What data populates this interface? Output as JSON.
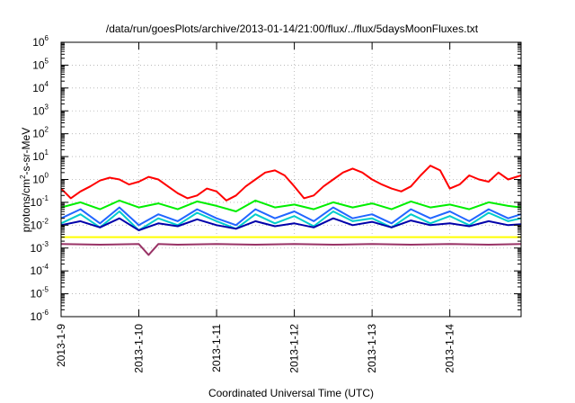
{
  "chart_data": {
    "type": "line",
    "title": "/data/run/goesPlots/archive/2013-01-14/21:00/flux/../flux/5daysMoonFluxes.txt",
    "xlabel": "Coordinated Universal Time (UTC)",
    "ylabel": {
      "pre": "protons/cm",
      "sup": "2",
      "post": "-s-sr-MeV"
    },
    "xlim": [
      "2013-01-09T00:00",
      "2013-01-14T22:00"
    ],
    "x_ticks": [
      {
        "date": "2013-01-09T00:00",
        "label": "2013-1-9"
      },
      {
        "date": "2013-01-10T00:00",
        "label": "2013-1-10"
      },
      {
        "date": "2013-01-11T00:00",
        "label": "2013-1-11"
      },
      {
        "date": "2013-01-12T00:00",
        "label": "2013-1-12"
      },
      {
        "date": "2013-01-13T00:00",
        "label": "2013-1-13"
      },
      {
        "date": "2013-01-14T00:00",
        "label": "2013-1-14"
      }
    ],
    "y_scale": "log",
    "ylim": [
      1e-06,
      1000000.0
    ],
    "y_ticks": [
      {
        "value": 1000000.0,
        "base": "10",
        "exp": "6"
      },
      {
        "value": 100000.0,
        "base": "10",
        "exp": "5"
      },
      {
        "value": 10000.0,
        "base": "10",
        "exp": "4"
      },
      {
        "value": 1000.0,
        "base": "10",
        "exp": "3"
      },
      {
        "value": 100.0,
        "base": "10",
        "exp": "2"
      },
      {
        "value": 10.0,
        "base": "10",
        "exp": "1"
      },
      {
        "value": 1.0,
        "base": "10",
        "exp": "0"
      },
      {
        "value": 0.1,
        "base": "10",
        "exp": "-1"
      },
      {
        "value": 0.01,
        "base": "10",
        "exp": "-2"
      },
      {
        "value": 0.001,
        "base": "10",
        "exp": "-3"
      },
      {
        "value": 0.0001,
        "base": "10",
        "exp": "-4"
      },
      {
        "value": 1e-05,
        "base": "10",
        "exp": "-5"
      },
      {
        "value": 1e-06,
        "base": "10",
        "exp": "-6"
      }
    ],
    "grid": true,
    "series": [
      {
        "color": "#ff0000",
        "x": [
          "2013-01-09T00:00",
          "2013-01-09T03:00",
          "2013-01-09T06:00",
          "2013-01-09T09:00",
          "2013-01-09T12:00",
          "2013-01-09T15:00",
          "2013-01-09T18:00",
          "2013-01-09T21:00",
          "2013-01-10T00:00",
          "2013-01-10T03:00",
          "2013-01-10T06:00",
          "2013-01-10T09:00",
          "2013-01-10T12:00",
          "2013-01-10T15:00",
          "2013-01-10T18:00",
          "2013-01-10T21:00",
          "2013-01-11T00:00",
          "2013-01-11T03:00",
          "2013-01-11T06:00",
          "2013-01-11T09:00",
          "2013-01-11T12:00",
          "2013-01-11T15:00",
          "2013-01-11T18:00",
          "2013-01-11T21:00",
          "2013-01-12T00:00",
          "2013-01-12T03:00",
          "2013-01-12T06:00",
          "2013-01-12T09:00",
          "2013-01-12T12:00",
          "2013-01-12T15:00",
          "2013-01-12T18:00",
          "2013-01-12T21:00",
          "2013-01-13T00:00",
          "2013-01-13T03:00",
          "2013-01-13T06:00",
          "2013-01-13T09:00",
          "2013-01-13T12:00",
          "2013-01-13T15:00",
          "2013-01-13T18:00",
          "2013-01-13T21:00",
          "2013-01-14T00:00",
          "2013-01-14T03:00",
          "2013-01-14T06:00",
          "2013-01-14T09:00",
          "2013-01-14T12:00",
          "2013-01-14T15:00",
          "2013-01-14T18:00",
          "2013-01-14T22:00"
        ],
        "values": [
          0.4,
          0.15,
          0.3,
          0.5,
          0.9,
          1.2,
          1.0,
          0.6,
          0.8,
          1.3,
          1.0,
          0.5,
          0.25,
          0.15,
          0.2,
          0.4,
          0.3,
          0.12,
          0.2,
          0.5,
          1.0,
          2.0,
          2.5,
          1.5,
          0.5,
          0.15,
          0.2,
          0.5,
          1.0,
          2.0,
          3.0,
          2.0,
          1.0,
          0.6,
          0.4,
          0.3,
          0.5,
          1.5,
          4.0,
          2.5,
          0.4,
          0.6,
          1.5,
          1.0,
          0.8,
          2.0,
          1.0,
          1.5
        ]
      },
      {
        "color": "#00ee00",
        "x": [
          "2013-01-09T00:00",
          "2013-01-09T06:00",
          "2013-01-09T12:00",
          "2013-01-09T18:00",
          "2013-01-10T00:00",
          "2013-01-10T06:00",
          "2013-01-10T12:00",
          "2013-01-10T18:00",
          "2013-01-11T00:00",
          "2013-01-11T06:00",
          "2013-01-11T12:00",
          "2013-01-11T18:00",
          "2013-01-12T00:00",
          "2013-01-12T06:00",
          "2013-01-12T12:00",
          "2013-01-12T18:00",
          "2013-01-13T00:00",
          "2013-01-13T06:00",
          "2013-01-13T12:00",
          "2013-01-13T18:00",
          "2013-01-14T00:00",
          "2013-01-14T06:00",
          "2013-01-14T12:00",
          "2013-01-14T18:00",
          "2013-01-14T22:00"
        ],
        "values": [
          0.06,
          0.1,
          0.05,
          0.12,
          0.06,
          0.09,
          0.05,
          0.11,
          0.07,
          0.04,
          0.12,
          0.06,
          0.08,
          0.05,
          0.1,
          0.06,
          0.09,
          0.05,
          0.11,
          0.06,
          0.08,
          0.05,
          0.1,
          0.07,
          0.06
        ]
      },
      {
        "color": "#00cccc",
        "x": [
          "2013-01-09T00:00",
          "2013-01-09T06:00",
          "2013-01-09T12:00",
          "2013-01-09T18:00",
          "2013-01-10T00:00",
          "2013-01-10T06:00",
          "2013-01-10T12:00",
          "2013-01-10T18:00",
          "2013-01-11T00:00",
          "2013-01-11T06:00",
          "2013-01-11T12:00",
          "2013-01-11T18:00",
          "2013-01-12T00:00",
          "2013-01-12T06:00",
          "2013-01-12T12:00",
          "2013-01-12T18:00",
          "2013-01-13T00:00",
          "2013-01-13T06:00",
          "2013-01-13T12:00",
          "2013-01-13T18:00",
          "2013-01-14T00:00",
          "2013-01-14T06:00",
          "2013-01-14T12:00",
          "2013-01-14T18:00",
          "2013-01-14T22:00"
        ],
        "values": [
          0.012,
          0.03,
          0.008,
          0.04,
          0.006,
          0.02,
          0.01,
          0.035,
          0.015,
          0.007,
          0.03,
          0.012,
          0.025,
          0.009,
          0.04,
          0.015,
          0.02,
          0.008,
          0.03,
          0.012,
          0.025,
          0.01,
          0.035,
          0.015,
          0.02
        ]
      },
      {
        "color": "#2266ff",
        "x": [
          "2013-01-09T00:00",
          "2013-01-09T06:00",
          "2013-01-09T12:00",
          "2013-01-09T18:00",
          "2013-01-10T00:00",
          "2013-01-10T06:00",
          "2013-01-10T12:00",
          "2013-01-10T18:00",
          "2013-01-11T00:00",
          "2013-01-11T06:00",
          "2013-01-11T12:00",
          "2013-01-11T18:00",
          "2013-01-12T00:00",
          "2013-01-12T06:00",
          "2013-01-12T12:00",
          "2013-01-12T18:00",
          "2013-01-13T00:00",
          "2013-01-13T06:00",
          "2013-01-13T12:00",
          "2013-01-13T18:00",
          "2013-01-14T00:00",
          "2013-01-14T06:00",
          "2013-01-14T12:00",
          "2013-01-14T18:00",
          "2013-01-14T22:00"
        ],
        "values": [
          0.02,
          0.05,
          0.012,
          0.06,
          0.01,
          0.03,
          0.015,
          0.05,
          0.02,
          0.01,
          0.05,
          0.02,
          0.04,
          0.015,
          0.06,
          0.02,
          0.03,
          0.012,
          0.05,
          0.02,
          0.04,
          0.015,
          0.05,
          0.02,
          0.03
        ]
      },
      {
        "color": "#0000aa",
        "x": [
          "2013-01-09T00:00",
          "2013-01-09T06:00",
          "2013-01-09T12:00",
          "2013-01-09T18:00",
          "2013-01-10T00:00",
          "2013-01-10T06:00",
          "2013-01-10T12:00",
          "2013-01-10T18:00",
          "2013-01-11T00:00",
          "2013-01-11T06:00",
          "2013-01-11T12:00",
          "2013-01-11T18:00",
          "2013-01-12T00:00",
          "2013-01-12T06:00",
          "2013-01-12T12:00",
          "2013-01-12T18:00",
          "2013-01-13T00:00",
          "2013-01-13T06:00",
          "2013-01-13T12:00",
          "2013-01-13T18:00",
          "2013-01-14T00:00",
          "2013-01-14T06:00",
          "2013-01-14T12:00",
          "2013-01-14T18:00",
          "2013-01-14T22:00"
        ],
        "values": [
          0.01,
          0.015,
          0.008,
          0.02,
          0.006,
          0.012,
          0.009,
          0.018,
          0.01,
          0.007,
          0.015,
          0.009,
          0.012,
          0.008,
          0.02,
          0.01,
          0.014,
          0.008,
          0.016,
          0.01,
          0.012,
          0.009,
          0.015,
          0.01,
          0.011
        ]
      },
      {
        "color": "#ffff00",
        "x": [
          "2013-01-09T00:00",
          "2013-01-10T00:00",
          "2013-01-11T00:00",
          "2013-01-12T00:00",
          "2013-01-13T00:00",
          "2013-01-14T00:00",
          "2013-01-14T22:00"
        ],
        "values": [
          0.003,
          0.003,
          0.003,
          0.003,
          0.003,
          0.003,
          0.003
        ]
      },
      {
        "color": "#993366",
        "x": [
          "2013-01-09T00:00",
          "2013-01-09T12:00",
          "2013-01-10T00:00",
          "2013-01-10T03:00",
          "2013-01-10T06:00",
          "2013-01-10T12:00",
          "2013-01-11T00:00",
          "2013-01-11T12:00",
          "2013-01-12T00:00",
          "2013-01-12T12:00",
          "2013-01-13T00:00",
          "2013-01-13T12:00",
          "2013-01-14T00:00",
          "2013-01-14T12:00",
          "2013-01-14T22:00"
        ],
        "values": [
          0.0015,
          0.0014,
          0.0015,
          0.0005,
          0.0015,
          0.0014,
          0.0015,
          0.0014,
          0.0015,
          0.0014,
          0.0015,
          0.0014,
          0.0015,
          0.0014,
          0.0015
        ]
      }
    ]
  }
}
